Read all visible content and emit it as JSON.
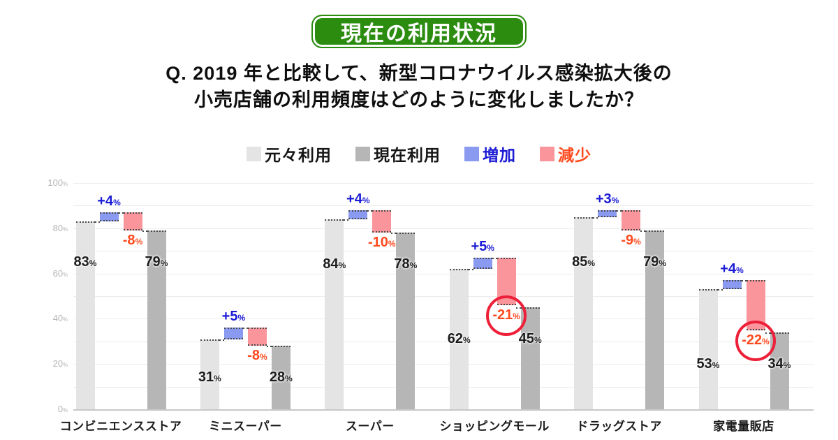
{
  "header": {
    "badge": "現在の利用状況",
    "question_line1": "Q. 2019 年と比較して、新型コロナウイルス感染拡大後の",
    "question_line2": "小売店舗の利用頻度はどのように変化しましたか？"
  },
  "legend": {
    "items": [
      {
        "label": "元々利用",
        "swatch": "#e4e4e4",
        "text_color": "#161616"
      },
      {
        "label": "現在利用",
        "swatch": "#b6b6b6",
        "text_color": "#161616"
      },
      {
        "label": "増加",
        "swatch": "#8a9af1",
        "text_color": "#1b1bd6"
      },
      {
        "label": "減少",
        "swatch": "#f9959b",
        "text_color": "#ff4a1f"
      }
    ]
  },
  "chart_data": {
    "type": "bar",
    "title": "現在の利用状況",
    "categories": [
      "コンビニエンスストア",
      "ミニスーパー",
      "スーパー",
      "ショッピングモール",
      "ドラッグストア",
      "家電量販店"
    ],
    "series": [
      {
        "name": "元々利用",
        "role": "original",
        "values": [
          83,
          31,
          84,
          62,
          85,
          53
        ]
      },
      {
        "name": "現在利用",
        "role": "current",
        "values": [
          79,
          28,
          78,
          45,
          79,
          34
        ]
      },
      {
        "name": "増加",
        "role": "increase",
        "values": [
          4,
          5,
          4,
          5,
          3,
          4
        ]
      },
      {
        "name": "減少",
        "role": "decrease",
        "values": [
          -8,
          -8,
          -10,
          -21,
          -9,
          -22
        ]
      }
    ],
    "increase_labels": [
      "+4%",
      "+5%",
      "+4%",
      "+5%",
      "+3%",
      "+4%"
    ],
    "decrease_labels": [
      "-8%",
      "-8%",
      "-10%",
      "-21%",
      "-9%",
      "-22%"
    ],
    "value_labels_original": [
      "83%",
      "31%",
      "84%",
      "62%",
      "85%",
      "53%"
    ],
    "value_labels_current": [
      "79%",
      "28%",
      "78%",
      "45%",
      "79%",
      "34%"
    ],
    "highlighted_decreases": [
      "ショッピングモール",
      "家電量販店"
    ],
    "ylim": [
      0,
      100
    ],
    "yticks": [
      "0%",
      "20%",
      "40%",
      "60%",
      "80%",
      "100%"
    ],
    "grid_step_minor": 10,
    "grid_step_labeled": 20,
    "grid": true,
    "legend_position": "top"
  },
  "colors": {
    "badge_green": "#2b8c10",
    "bar_original": "#e4e4e4",
    "bar_current": "#b6b6b6",
    "bar_increase": "#8a9af1",
    "bar_decrease": "#f9959b",
    "increase_text": "#1b1bd6",
    "decrease_text": "#ff4a1f",
    "value_text": "#1c1c1c",
    "highlight_circle": "#ee2039",
    "axis_text": "#b4b4b4",
    "gridline": "#ececec",
    "baseline": "#c8c8c8",
    "dotted_line": "#4a4a4a"
  }
}
